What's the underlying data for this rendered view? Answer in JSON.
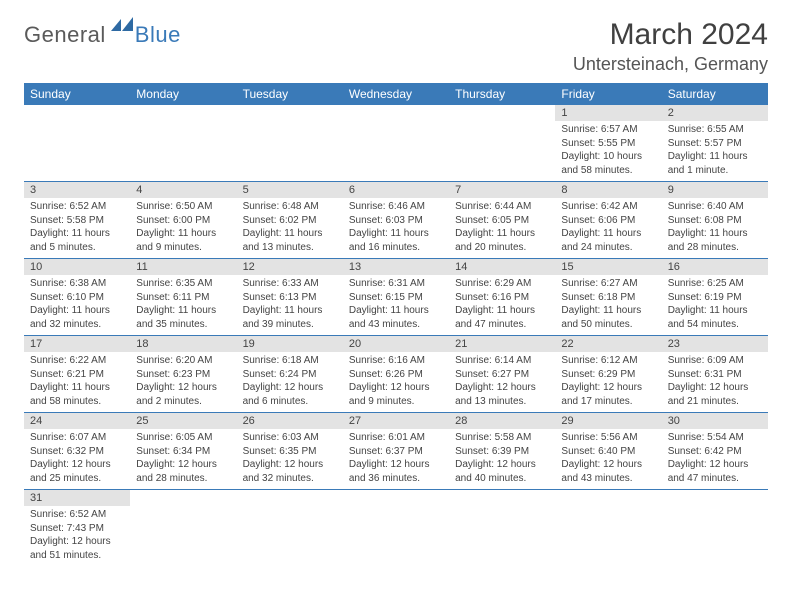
{
  "logo": {
    "general": "General",
    "blue": "Blue"
  },
  "title": "March 2024",
  "location": "Untersteinach, Germany",
  "colors": {
    "header_bg": "#3a7ab8",
    "header_fg": "#ffffff",
    "daynum_bg": "#e3e3e3",
    "row_border": "#3a7ab8",
    "text": "#444444",
    "title": "#404040"
  },
  "day_headers": [
    "Sunday",
    "Monday",
    "Tuesday",
    "Wednesday",
    "Thursday",
    "Friday",
    "Saturday"
  ],
  "weeks": [
    [
      null,
      null,
      null,
      null,
      null,
      {
        "n": "1",
        "sr": "6:57 AM",
        "ss": "5:55 PM",
        "dl": "10 hours and 58 minutes."
      },
      {
        "n": "2",
        "sr": "6:55 AM",
        "ss": "5:57 PM",
        "dl": "11 hours and 1 minute."
      }
    ],
    [
      {
        "n": "3",
        "sr": "6:52 AM",
        "ss": "5:58 PM",
        "dl": "11 hours and 5 minutes."
      },
      {
        "n": "4",
        "sr": "6:50 AM",
        "ss": "6:00 PM",
        "dl": "11 hours and 9 minutes."
      },
      {
        "n": "5",
        "sr": "6:48 AM",
        "ss": "6:02 PM",
        "dl": "11 hours and 13 minutes."
      },
      {
        "n": "6",
        "sr": "6:46 AM",
        "ss": "6:03 PM",
        "dl": "11 hours and 16 minutes."
      },
      {
        "n": "7",
        "sr": "6:44 AM",
        "ss": "6:05 PM",
        "dl": "11 hours and 20 minutes."
      },
      {
        "n": "8",
        "sr": "6:42 AM",
        "ss": "6:06 PM",
        "dl": "11 hours and 24 minutes."
      },
      {
        "n": "9",
        "sr": "6:40 AM",
        "ss": "6:08 PM",
        "dl": "11 hours and 28 minutes."
      }
    ],
    [
      {
        "n": "10",
        "sr": "6:38 AM",
        "ss": "6:10 PM",
        "dl": "11 hours and 32 minutes."
      },
      {
        "n": "11",
        "sr": "6:35 AM",
        "ss": "6:11 PM",
        "dl": "11 hours and 35 minutes."
      },
      {
        "n": "12",
        "sr": "6:33 AM",
        "ss": "6:13 PM",
        "dl": "11 hours and 39 minutes."
      },
      {
        "n": "13",
        "sr": "6:31 AM",
        "ss": "6:15 PM",
        "dl": "11 hours and 43 minutes."
      },
      {
        "n": "14",
        "sr": "6:29 AM",
        "ss": "6:16 PM",
        "dl": "11 hours and 47 minutes."
      },
      {
        "n": "15",
        "sr": "6:27 AM",
        "ss": "6:18 PM",
        "dl": "11 hours and 50 minutes."
      },
      {
        "n": "16",
        "sr": "6:25 AM",
        "ss": "6:19 PM",
        "dl": "11 hours and 54 minutes."
      }
    ],
    [
      {
        "n": "17",
        "sr": "6:22 AM",
        "ss": "6:21 PM",
        "dl": "11 hours and 58 minutes."
      },
      {
        "n": "18",
        "sr": "6:20 AM",
        "ss": "6:23 PM",
        "dl": "12 hours and 2 minutes."
      },
      {
        "n": "19",
        "sr": "6:18 AM",
        "ss": "6:24 PM",
        "dl": "12 hours and 6 minutes."
      },
      {
        "n": "20",
        "sr": "6:16 AM",
        "ss": "6:26 PM",
        "dl": "12 hours and 9 minutes."
      },
      {
        "n": "21",
        "sr": "6:14 AM",
        "ss": "6:27 PM",
        "dl": "12 hours and 13 minutes."
      },
      {
        "n": "22",
        "sr": "6:12 AM",
        "ss": "6:29 PM",
        "dl": "12 hours and 17 minutes."
      },
      {
        "n": "23",
        "sr": "6:09 AM",
        "ss": "6:31 PM",
        "dl": "12 hours and 21 minutes."
      }
    ],
    [
      {
        "n": "24",
        "sr": "6:07 AM",
        "ss": "6:32 PM",
        "dl": "12 hours and 25 minutes."
      },
      {
        "n": "25",
        "sr": "6:05 AM",
        "ss": "6:34 PM",
        "dl": "12 hours and 28 minutes."
      },
      {
        "n": "26",
        "sr": "6:03 AM",
        "ss": "6:35 PM",
        "dl": "12 hours and 32 minutes."
      },
      {
        "n": "27",
        "sr": "6:01 AM",
        "ss": "6:37 PM",
        "dl": "12 hours and 36 minutes."
      },
      {
        "n": "28",
        "sr": "5:58 AM",
        "ss": "6:39 PM",
        "dl": "12 hours and 40 minutes."
      },
      {
        "n": "29",
        "sr": "5:56 AM",
        "ss": "6:40 PM",
        "dl": "12 hours and 43 minutes."
      },
      {
        "n": "30",
        "sr": "5:54 AM",
        "ss": "6:42 PM",
        "dl": "12 hours and 47 minutes."
      }
    ],
    [
      {
        "n": "31",
        "sr": "6:52 AM",
        "ss": "7:43 PM",
        "dl": "12 hours and 51 minutes."
      },
      null,
      null,
      null,
      null,
      null,
      null
    ]
  ],
  "labels": {
    "sunrise": "Sunrise:",
    "sunset": "Sunset:",
    "daylight": "Daylight:"
  }
}
